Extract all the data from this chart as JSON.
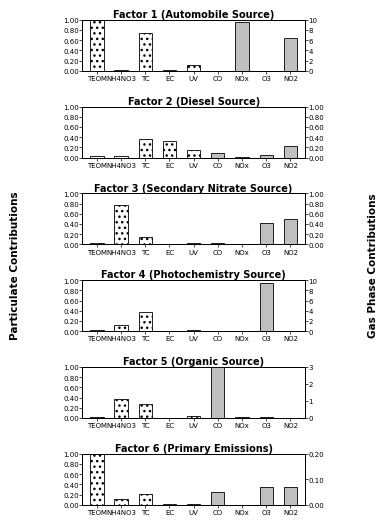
{
  "categories": [
    "TEOM",
    "NH4NO3",
    "TC",
    "EC",
    "UV",
    "CO",
    "NOx",
    "O3",
    "NO2"
  ],
  "factors": [
    {
      "title": "Factor 1 (Automobile Source)",
      "particulate": [
        1.0,
        0.01,
        0.75,
        0.01,
        0.12,
        0.0,
        0.0,
        0.0,
        0.0
      ],
      "gas": [
        0.0,
        0.0,
        0.0,
        0.0,
        0.0,
        0.01,
        9.5,
        0.0,
        6.5
      ],
      "ylim_left": [
        0,
        1.0
      ],
      "ylim_right": [
        0,
        10
      ],
      "yticks_left": [
        0.0,
        0.2,
        0.4,
        0.6,
        0.8,
        1.0
      ],
      "yticks_right": [
        0,
        2,
        4,
        6,
        8,
        10
      ]
    },
    {
      "title": "Factor 2 (Diesel Source)",
      "particulate": [
        0.03,
        0.03,
        0.37,
        0.32,
        0.16,
        0.0,
        0.0,
        0.0,
        0.0
      ],
      "gas": [
        0.0,
        0.0,
        0.0,
        0.0,
        0.0,
        0.1,
        0.02,
        0.05,
        0.22
      ],
      "ylim_left": [
        0,
        1.0
      ],
      "ylim_right": [
        0,
        1.0
      ],
      "yticks_left": [
        0.0,
        0.2,
        0.4,
        0.6,
        0.8,
        1.0
      ],
      "yticks_right": [
        0.0,
        0.2,
        0.4,
        0.6,
        0.8,
        1.0
      ]
    },
    {
      "title": "Factor 3 (Secondary Nitrate Source)",
      "particulate": [
        0.02,
        0.78,
        0.14,
        0.01,
        0.02,
        0.0,
        0.0,
        0.0,
        0.0
      ],
      "gas": [
        0.0,
        0.0,
        0.0,
        0.0,
        0.0,
        0.02,
        0.0,
        0.43,
        0.5
      ],
      "ylim_left": [
        0,
        1.0
      ],
      "ylim_right": [
        0,
        1.0
      ],
      "yticks_left": [
        0.0,
        0.2,
        0.4,
        0.6,
        0.8,
        1.0
      ],
      "yticks_right": [
        0.0,
        0.2,
        0.4,
        0.6,
        0.8,
        1.0
      ]
    },
    {
      "title": "Factor 4 (Photochemistry Source)",
      "particulate": [
        0.02,
        0.12,
        0.38,
        0.01,
        0.03,
        0.0,
        0.0,
        0.0,
        0.0
      ],
      "gas": [
        0.0,
        0.0,
        0.0,
        0.0,
        0.0,
        0.01,
        0.01,
        9.5,
        0.01
      ],
      "ylim_left": [
        0,
        1.0
      ],
      "ylim_right": [
        0,
        10
      ],
      "yticks_left": [
        0.0,
        0.2,
        0.4,
        0.6,
        0.8,
        1.0
      ],
      "yticks_right": [
        0,
        2,
        4,
        6,
        8,
        10
      ]
    },
    {
      "title": "Factor 5 (Organic Source)",
      "particulate": [
        0.03,
        0.37,
        0.27,
        0.01,
        0.04,
        0.0,
        0.0,
        0.0,
        0.0
      ],
      "gas": [
        0.0,
        0.0,
        0.0,
        0.0,
        0.0,
        3.0,
        0.07,
        0.07,
        0.0
      ],
      "ylim_left": [
        0,
        1.0
      ],
      "ylim_right": [
        0,
        3
      ],
      "yticks_left": [
        0.0,
        0.2,
        0.4,
        0.6,
        0.8,
        1.0
      ],
      "yticks_right": [
        0,
        1,
        2,
        3
      ]
    },
    {
      "title": "Factor 6 (Primary Emissions)",
      "particulate": [
        1.0,
        0.12,
        0.22,
        0.01,
        0.01,
        0.0,
        0.0,
        0.0,
        0.0
      ],
      "gas": [
        0.0,
        0.0,
        0.0,
        0.0,
        0.0,
        0.05,
        0.0,
        0.07,
        0.07
      ],
      "ylim_left": [
        0,
        1.0
      ],
      "ylim_right": [
        0,
        0.2
      ],
      "yticks_left": [
        0.0,
        0.2,
        0.4,
        0.6,
        0.8,
        1.0
      ],
      "yticks_right": [
        0.0,
        0.1,
        0.2
      ]
    }
  ],
  "particulate_idx": [
    0,
    1,
    2,
    3,
    4
  ],
  "gas_idx": [
    5,
    6,
    7,
    8
  ],
  "hatch_pattern": "///",
  "gas_color": "#c0c0c0",
  "left_ylabel": "Particulate Contributions",
  "right_ylabel": "Gas Phase Contributions",
  "bg_color": "#ffffff",
  "tick_label_fontsize": 5.0,
  "title_fontsize": 7.0,
  "axis_label_fontsize": 7.5,
  "bar_width": 0.55
}
